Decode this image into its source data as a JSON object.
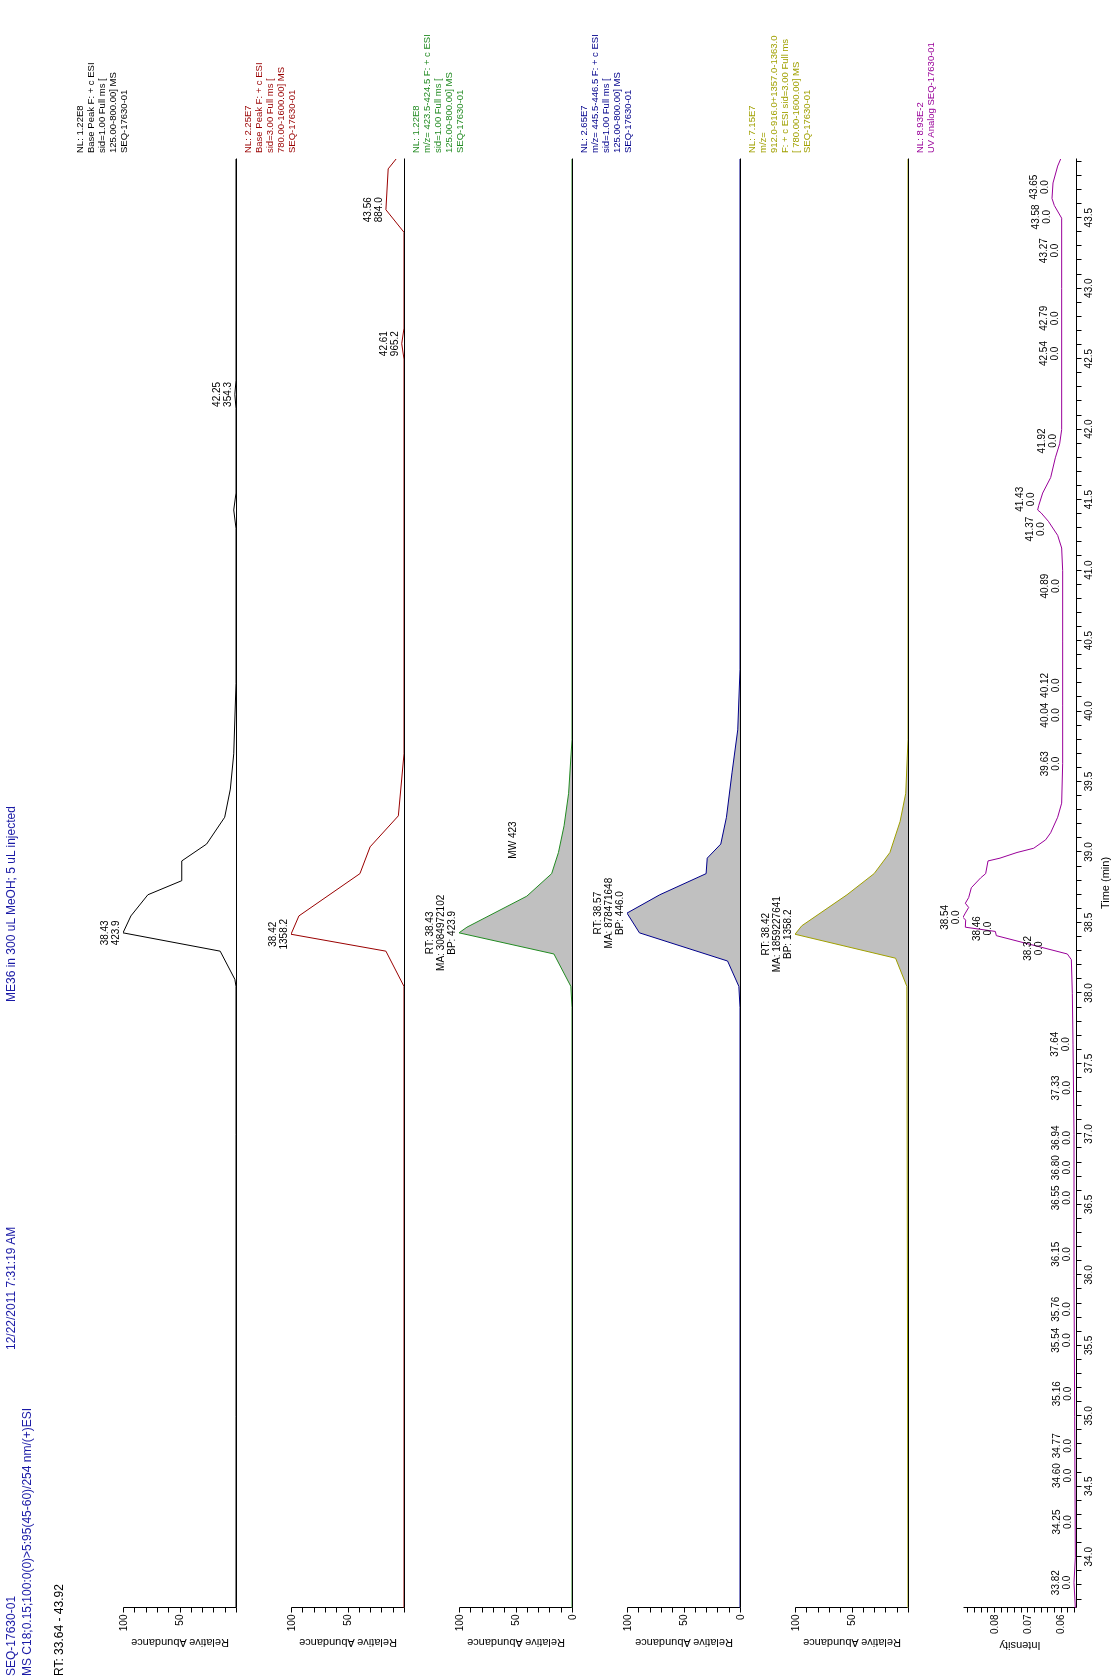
{
  "chart_data": [
    {
      "type": "line",
      "subtitle": "NL: 1.22E8\nBase Peak F: + c ESI\nsid=1.00  Full ms [\n125.00-800.00]  MS\nSEQ-17630-01",
      "xlabel": "Relative Abundance",
      "tick_labels": "x",
      "ylim": [
        33.64,
        43.92
      ],
      "xlim": [
        100,
        0
      ],
      "xticks": [
        {
          "value": 0,
          "label": null
        },
        {
          "value": 10,
          "label": null
        },
        {
          "value": 20,
          "label": null
        },
        {
          "value": 30,
          "label": null
        },
        {
          "value": 40,
          "label": null
        },
        50,
        {
          "value": 60,
          "label": null
        },
        {
          "value": 70,
          "label": null
        },
        {
          "value": 80,
          "label": null
        },
        {
          "value": 90,
          "label": null
        },
        100
      ],
      "series": [
        {
          "color": "#000000",
          "values": [
            33.64,
            35,
            37,
            38.05,
            38.1,
            38.3,
            38.43,
            38.55,
            38.7,
            38.8,
            38.94,
            39.06,
            39.25,
            39.45,
            39.7,
            40.2,
            41.3,
            41.43,
            41.55,
            42.15,
            42.25,
            42.35,
            43.92
          ],
          "x": [
            0,
            0,
            0,
            0,
            1,
            14,
            100,
            93,
            78,
            48,
            48,
            26,
            10,
            5,
            2,
            0,
            0,
            2,
            0,
            0,
            1,
            0,
            0
          ]
        }
      ],
      "annotations": [
        "SEQ-17630-01",
        "12/22/2011 7:31:19 AM",
        "ME36 in 300 uL MeOH; 5 uL injected",
        "MS C18;0.15;100:0(0)>5:95(45-60)/254 nm/(+)ESI",
        "RT: 33.64 - 43.92",
        {
          "text": "38.43\n423.9",
          "y": 38.43,
          "x": 100
        },
        {
          "text": "42.25\n354.3",
          "y": 42.25,
          "x": 1
        }
      ]
    },
    {
      "type": "line",
      "subtitle": "NL: 2.25E7\nBase Peak F: + c ESI\nsid=3.00  Full ms [\n780.00-1600.00]  MS\nSEQ-17630-01",
      "xlabel": "Relative Abundance",
      "tick_labels": "x",
      "ylim": [
        33.64,
        43.92
      ],
      "xlim": [
        100,
        0
      ],
      "xticks": [
        {
          "value": 0,
          "label": null
        },
        {
          "value": 10,
          "label": null
        },
        {
          "value": 20,
          "label": null
        },
        {
          "value": 30,
          "label": null
        },
        {
          "value": 40,
          "label": null
        },
        50,
        {
          "value": 60,
          "label": null
        },
        {
          "value": 70,
          "label": null
        },
        {
          "value": 80,
          "label": null
        },
        {
          "value": 90,
          "label": null
        },
        100
      ],
      "series": [
        {
          "color": "#990000",
          "values": [
            33.64,
            38.05,
            38.3,
            38.42,
            38.55,
            38.85,
            39.04,
            39.26,
            39.7,
            42.5,
            42.61,
            42.72,
            43.4,
            43.56,
            43.85,
            43.92
          ],
          "x": [
            0,
            0,
            16,
            100,
            93,
            39,
            30,
            5,
            0,
            0,
            2,
            0,
            0,
            16,
            14,
            7
          ]
        }
      ],
      "annotations": [
        {
          "text": "38.42\n1358.2",
          "y": 38.42,
          "x": 100
        },
        {
          "text": "42.61\n965.2",
          "y": 42.61,
          "x": 2
        },
        {
          "text": "43.56\n884.0",
          "y": 43.56,
          "x": 16
        }
      ]
    },
    {
      "type": "area",
      "subtitle": "NL: 1.22E8\nm/z= 423.5-424.5 F: + c ESI\nsid=1.00  Full ms [\n125.00-800.00]  MS\nSEQ-17630-01",
      "xlabel": "Relative Abundance",
      "tick_labels": "x",
      "ylim": [
        33.64,
        43.92
      ],
      "xlim": [
        100,
        0
      ],
      "xticks": [
        0,
        {
          "value": 10,
          "label": null
        },
        {
          "value": 20,
          "label": null
        },
        {
          "value": 30,
          "label": null
        },
        {
          "value": 40,
          "label": null
        },
        50,
        {
          "value": 60,
          "label": null
        },
        {
          "value": 70,
          "label": null
        },
        {
          "value": 80,
          "label": null
        },
        {
          "value": 90,
          "label": null
        },
        100
      ],
      "series": [
        {
          "color": "#228b22",
          "values": [
            33.64,
            37.9,
            38.05,
            38.28,
            38.43,
            38.47,
            38.69,
            38.85,
            39.0,
            39.19,
            39.42,
            39.8,
            43.92
          ],
          "x": [
            0,
            0,
            1,
            16,
            100,
            93,
            40,
            18,
            12,
            7,
            3,
            0,
            0
          ]
        }
      ],
      "annotations": [
        {
          "text": "RT: 38.43\nMA: 3084972102\nBP: 423.9",
          "y": 38.43,
          "x": 100
        },
        "MW 423"
      ]
    },
    {
      "type": "area",
      "subtitle": "NL: 2.65E7\nm/z= 445.5-446.5 F: + c ESI\nsid=1.00  Full ms [\n125.00-800.00]  MS\nSEQ-17630-01",
      "xlabel": "Relative Abundance",
      "tick_labels": "x",
      "ylim": [
        33.64,
        43.92
      ],
      "xlim": [
        100,
        0
      ],
      "xticks": [
        0,
        {
          "value": 10,
          "label": null
        },
        {
          "value": 20,
          "label": null
        },
        {
          "value": 30,
          "label": null
        },
        {
          "value": 40,
          "label": null
        },
        50,
        {
          "value": 60,
          "label": null
        },
        {
          "value": 70,
          "label": null
        },
        {
          "value": 80,
          "label": null
        },
        {
          "value": 90,
          "label": null
        },
        100
      ],
      "series": [
        {
          "color": "#00008b",
          "values": [
            33.64,
            37.9,
            38.05,
            38.23,
            38.43,
            38.57,
            38.7,
            38.85,
            38.96,
            39.06,
            39.25,
            39.57,
            39.87,
            40.3,
            43.92
          ],
          "x": [
            0,
            0,
            1,
            11,
            89,
            100,
            71,
            30,
            29,
            17,
            12,
            7,
            2,
            0,
            0
          ]
        }
      ],
      "annotations": [
        {
          "text": "RT: 38.57\nMA: 878471648\nBP: 446.0",
          "y": 38.57,
          "x": 100
        }
      ]
    },
    {
      "type": "area",
      "subtitle": "NL: 7.15E7\nm/z=\n912.0-916.0+1357.0-1363.0\nF: + c ESI sid=3.00  Full ms\n[ 780.00-1600.00]  MS\nSEQ-17630-01",
      "xlabel": "Relative Abundance",
      "tick_labels": "x",
      "ylim": [
        33.64,
        43.92
      ],
      "xlim": [
        100,
        0
      ],
      "xticks": [
        {
          "value": 0,
          "label": null
        },
        {
          "value": 10,
          "label": null
        },
        {
          "value": 20,
          "label": null
        },
        {
          "value": 30,
          "label": null
        },
        {
          "value": 40,
          "label": null
        },
        50,
        {
          "value": 60,
          "label": null
        },
        {
          "value": 70,
          "label": null
        },
        {
          "value": 80,
          "label": null
        },
        {
          "value": 90,
          "label": null
        },
        100
      ],
      "series": [
        {
          "color": "#a0a000",
          "values": [
            33.64,
            38.05,
            38.25,
            38.42,
            38.48,
            38.7,
            38.85,
            39.0,
            39.22,
            39.42,
            39.8,
            43.92
          ],
          "x": [
            0,
            1,
            11,
            100,
            94,
            54,
            30,
            16,
            7,
            2,
            0,
            0
          ]
        }
      ],
      "annotations": [
        {
          "text": "RT: 38.42\nMA: 1859227641\nBP: 1358.2",
          "y": 38.42,
          "x": 100
        }
      ]
    },
    {
      "type": "line",
      "subtitle": "NL: 8.93E-2\nUV  Analog SEQ-17630-01",
      "xlabel": "Intensity",
      "ylabel": "Time (min)",
      "ylim": [
        33.64,
        43.92
      ],
      "xlim": [
        0.0893,
        0.0554
      ],
      "xticks": [
        {
          "value": 0.056,
          "label": null
        },
        {
          "value": 0.058,
          "label": null
        },
        0.06,
        {
          "value": 0.062,
          "label": null
        },
        {
          "value": 0.064,
          "label": null
        },
        {
          "value": 0.066,
          "label": null
        },
        {
          "value": 0.068,
          "label": null
        },
        0.07,
        {
          "value": 0.072,
          "label": null
        },
        {
          "value": 0.074,
          "label": null
        },
        {
          "value": 0.076,
          "label": null
        },
        {
          "value": 0.078,
          "label": null
        },
        0.08,
        {
          "value": 0.082,
          "label": null
        },
        {
          "value": 0.084,
          "label": null
        },
        {
          "value": 0.086,
          "label": null
        },
        {
          "value": 0.088,
          "label": null
        }
      ],
      "yticks": [
        {
          "value": 33.7,
          "label": null
        },
        {
          "value": 33.8,
          "label": null
        },
        {
          "value": 33.9,
          "label": null
        },
        {
          "value": 34,
          "label": "34.0"
        },
        {
          "value": 34.1,
          "label": null
        },
        {
          "value": 34.2,
          "label": null
        },
        {
          "value": 34.3,
          "label": null
        },
        {
          "value": 34.4,
          "label": null
        },
        34.5,
        {
          "value": 34.6,
          "label": null
        },
        {
          "value": 34.7,
          "label": null
        },
        {
          "value": 34.8,
          "label": null
        },
        {
          "value": 34.9,
          "label": null
        },
        {
          "value": 35,
          "label": "35.0"
        },
        {
          "value": 35.1,
          "label": null
        },
        {
          "value": 35.2,
          "label": null
        },
        {
          "value": 35.3,
          "label": null
        },
        {
          "value": 35.4,
          "label": null
        },
        35.5,
        {
          "value": 35.6,
          "label": null
        },
        {
          "value": 35.7,
          "label": null
        },
        {
          "value": 35.8,
          "label": null
        },
        {
          "value": 35.9,
          "label": null
        },
        {
          "value": 36,
          "label": "36.0"
        },
        {
          "value": 36.1,
          "label": null
        },
        {
          "value": 36.2,
          "label": null
        },
        {
          "value": 36.3,
          "label": null
        },
        {
          "value": 36.4,
          "label": null
        },
        36.5,
        {
          "value": 36.6,
          "label": null
        },
        {
          "value": 36.7,
          "label": null
        },
        {
          "value": 36.8,
          "label": null
        },
        {
          "value": 36.9,
          "label": null
        },
        {
          "value": 37,
          "label": "37.0"
        },
        {
          "value": 37.1,
          "label": null
        },
        {
          "value": 37.2,
          "label": null
        },
        {
          "value": 37.3,
          "label": null
        },
        {
          "value": 37.4,
          "label": null
        },
        37.5,
        {
          "value": 37.6,
          "label": null
        },
        {
          "value": 37.7,
          "label": null
        },
        {
          "value": 37.8,
          "label": null
        },
        {
          "value": 37.9,
          "label": null
        },
        {
          "value": 38,
          "label": "38.0"
        },
        {
          "value": 38.1,
          "label": null
        },
        {
          "value": 38.2,
          "label": null
        },
        {
          "value": 38.3,
          "label": null
        },
        {
          "value": 38.4,
          "label": null
        },
        38.5,
        {
          "value": 38.6,
          "label": null
        },
        {
          "value": 38.7,
          "label": null
        },
        {
          "value": 38.8,
          "label": null
        },
        {
          "value": 38.9,
          "label": null
        },
        {
          "value": 39,
          "label": "39.0"
        },
        {
          "value": 39.1,
          "label": null
        },
        {
          "value": 39.2,
          "label": null
        },
        {
          "value": 39.3,
          "label": null
        },
        {
          "value": 39.4,
          "label": null
        },
        39.5,
        {
          "value": 39.6,
          "label": null
        },
        {
          "value": 39.7,
          "label": null
        },
        {
          "value": 39.8,
          "label": null
        },
        {
          "value": 39.9,
          "label": null
        },
        {
          "value": 40,
          "label": "40.0"
        },
        {
          "value": 40.1,
          "label": null
        },
        {
          "value": 40.2,
          "label": null
        },
        {
          "value": 40.3,
          "label": null
        },
        {
          "value": 40.4,
          "label": null
        },
        40.5,
        {
          "value": 40.6,
          "label": null
        },
        {
          "value": 40.7,
          "label": null
        },
        {
          "value": 40.8,
          "label": null
        },
        {
          "value": 40.9,
          "label": null
        },
        {
          "value": 41,
          "label": "41.0"
        },
        {
          "value": 41.1,
          "label": null
        },
        {
          "value": 41.2,
          "label": null
        },
        {
          "value": 41.3,
          "label": null
        },
        {
          "value": 41.4,
          "label": null
        },
        41.5,
        {
          "value": 41.6,
          "label": null
        },
        {
          "value": 41.7,
          "label": null
        },
        {
          "value": 41.8,
          "label": null
        },
        {
          "value": 41.9,
          "label": null
        },
        {
          "value": 42,
          "label": "42.0"
        },
        {
          "value": 42.1,
          "label": null
        },
        {
          "value": 42.2,
          "label": null
        },
        {
          "value": 42.3,
          "label": null
        },
        {
          "value": 42.4,
          "label": null
        },
        42.5,
        {
          "value": 42.6,
          "label": null
        },
        {
          "value": 42.7,
          "label": null
        },
        {
          "value": 42.8,
          "label": null
        },
        {
          "value": 42.9,
          "label": null
        },
        {
          "value": 43,
          "label": "43.0"
        },
        {
          "value": 43.1,
          "label": null
        },
        {
          "value": 43.2,
          "label": null
        },
        {
          "value": 43.3,
          "label": null
        },
        {
          "value": 43.4,
          "label": null
        },
        43.5,
        {
          "value": 43.6,
          "label": null
        },
        {
          "value": 43.7,
          "label": null
        },
        {
          "value": 43.8,
          "label": null
        },
        {
          "value": 43.9,
          "label": null
        }
      ],
      "series": [
        {
          "color": "#990099",
          "values": [
            33.64,
            33.82,
            34.0,
            35.0,
            36.0,
            37.0,
            37.64,
            38.0,
            38.24,
            38.28,
            38.41,
            38.44,
            38.47,
            38.52,
            38.54,
            38.57,
            38.61,
            38.64,
            38.68,
            38.75,
            38.82,
            38.85,
            38.94,
            38.96,
            39.0,
            39.03,
            39.09,
            39.14,
            39.25,
            39.35,
            39.63,
            40.04,
            40.5,
            41.0,
            41.16,
            41.25,
            41.35,
            41.41,
            41.43,
            41.46,
            41.55,
            41.66,
            41.8,
            41.9,
            42.0,
            43.0,
            43.5,
            43.59,
            43.64,
            43.75,
            43.87,
            43.92
          ],
          "x": [
            0.0556,
            0.056,
            0.0556,
            0.0558,
            0.056,
            0.056,
            0.0563,
            0.0565,
            0.0568,
            0.058,
            0.0793,
            0.0796,
            0.0886,
            0.0885,
            0.0893,
            0.0886,
            0.0876,
            0.0886,
            0.0876,
            0.0868,
            0.084,
            0.0825,
            0.0818,
            0.0782,
            0.0731,
            0.0681,
            0.0645,
            0.063,
            0.0609,
            0.0597,
            0.0594,
            0.0594,
            0.0594,
            0.0594,
            0.0597,
            0.0609,
            0.0637,
            0.0659,
            0.0669,
            0.0666,
            0.0654,
            0.063,
            0.0616,
            0.0603,
            0.0597,
            0.0597,
            0.0597,
            0.0619,
            0.0626,
            0.0623,
            0.0609,
            0.06
          ]
        }
      ],
      "annotations": [
        {
          "text": "33.82\n0.0",
          "y": 33.82,
          "x": 0.056
        },
        {
          "text": "34.25\n0.0",
          "y": 34.25,
          "x": 0.0557
        },
        {
          "text": "34.60\n0.0",
          "y": 34.6,
          "x": 0.0557
        },
        {
          "text": "34.77\n0.0",
          "y": 34.77,
          "x": 0.0557
        },
        {
          "text": "35.16\n0.0",
          "y": 35.16,
          "x": 0.0558
        },
        {
          "text": "35.54\n0.0",
          "y": 35.54,
          "x": 0.0559
        },
        {
          "text": "35.76\n0.0",
          "y": 35.76,
          "x": 0.0559
        },
        {
          "text": "36.15\n0.0",
          "y": 36.15,
          "x": 0.056
        },
        {
          "text": "36.55\n0.0",
          "y": 36.55,
          "x": 0.056
        },
        {
          "text": "36.80\n0.0",
          "y": 36.8,
          "x": 0.056
        },
        {
          "text": "36.94\n0.0",
          "y": 36.94,
          "x": 0.056
        },
        {
          "text": "37.33\n0.0",
          "y": 37.33,
          "x": 0.0561
        },
        {
          "text": "37.64\n0.0",
          "y": 37.64,
          "x": 0.0563
        },
        {
          "text": "38.32\n0.0",
          "y": 38.32,
          "x": 0.0645
        },
        {
          "text": "38.46\n0.0",
          "y": 38.46,
          "x": 0.0796
        },
        {
          "text": "38.54\n0.0",
          "y": 38.54,
          "x": 0.0893
        },
        {
          "text": "39.63\n0.0",
          "y": 39.63,
          "x": 0.0594
        },
        {
          "text": "40.04\n0.0",
          "y": 40.04,
          "x": 0.0594
        },
        {
          "text": "40.12\n0.0",
          "y": 40.12,
          "x": 0.0594
        },
        {
          "text": "40.89\n0.0",
          "y": 40.89,
          "x": 0.0594
        },
        {
          "text": "41.37\n0.0",
          "y": 41.37,
          "x": 0.0637
        },
        {
          "text": "41.43\n0.0",
          "y": 41.43,
          "x": 0.0669
        },
        {
          "text": "41.92\n0.0",
          "y": 41.92,
          "x": 0.0603
        },
        {
          "text": "42.54\n0.0",
          "y": 42.54,
          "x": 0.0597
        },
        {
          "text": "42.79\n0.0",
          "y": 42.79,
          "x": 0.0597
        },
        {
          "text": "43.27\n0.0",
          "y": 43.27,
          "x": 0.0597
        },
        {
          "text": "43.58\n0.0",
          "y": 43.58,
          "x": 0.0619
        },
        {
          "text": "43.65\n0.0",
          "y": 43.65,
          "x": 0.0626
        }
      ]
    }
  ]
}
